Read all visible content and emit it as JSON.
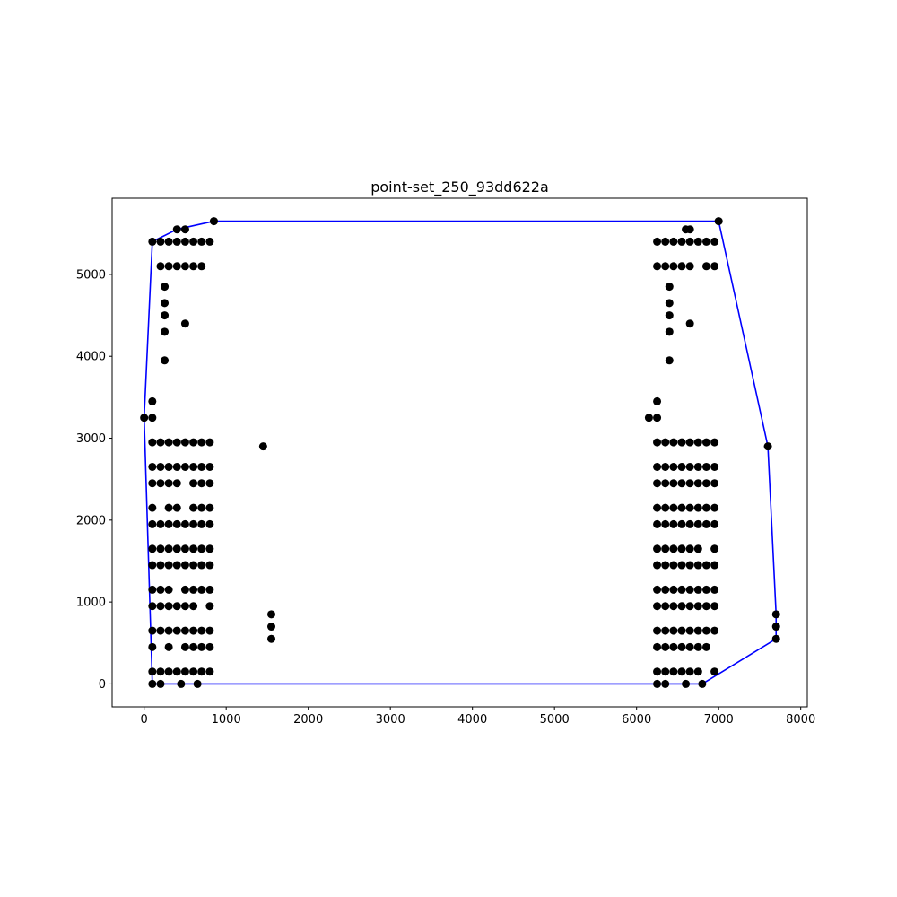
{
  "chart_data": {
    "type": "scatter",
    "title": "point-set_250_93dd622a",
    "xlabel": "",
    "ylabel": "",
    "xlim": [
      -390,
      8080
    ],
    "ylim": [
      -280,
      5930
    ],
    "grid": false,
    "xticks": [
      0,
      1000,
      2000,
      3000,
      4000,
      5000,
      6000,
      7000,
      8000
    ],
    "yticks": [
      0,
      1000,
      2000,
      3000,
      4000,
      5000
    ],
    "colors": {
      "points": "#000000",
      "hull": "#0000ff"
    },
    "series": [
      {
        "kind": "points",
        "points": [
          [
            850,
            5650
          ],
          [
            400,
            5550
          ],
          [
            500,
            5550
          ],
          [
            100,
            5400
          ],
          [
            200,
            5400
          ],
          [
            300,
            5400
          ],
          [
            400,
            5400
          ],
          [
            500,
            5400
          ],
          [
            600,
            5400
          ],
          [
            700,
            5400
          ],
          [
            800,
            5400
          ],
          [
            200,
            5100
          ],
          [
            300,
            5100
          ],
          [
            400,
            5100
          ],
          [
            500,
            5100
          ],
          [
            600,
            5100
          ],
          [
            700,
            5100
          ],
          [
            250,
            4850
          ],
          [
            250,
            4650
          ],
          [
            250,
            4500
          ],
          [
            500,
            4400
          ],
          [
            250,
            4300
          ],
          [
            250,
            3950
          ],
          [
            100,
            3450
          ],
          [
            0,
            3250
          ],
          [
            100,
            3250
          ],
          [
            100,
            2950
          ],
          [
            200,
            2950
          ],
          [
            300,
            2950
          ],
          [
            400,
            2950
          ],
          [
            500,
            2950
          ],
          [
            600,
            2950
          ],
          [
            700,
            2950
          ],
          [
            800,
            2950
          ],
          [
            1450,
            2900
          ],
          [
            100,
            2650
          ],
          [
            200,
            2650
          ],
          [
            300,
            2650
          ],
          [
            400,
            2650
          ],
          [
            500,
            2650
          ],
          [
            600,
            2650
          ],
          [
            700,
            2650
          ],
          [
            800,
            2650
          ],
          [
            100,
            2450
          ],
          [
            200,
            2450
          ],
          [
            300,
            2450
          ],
          [
            400,
            2450
          ],
          [
            600,
            2450
          ],
          [
            700,
            2450
          ],
          [
            800,
            2450
          ],
          [
            100,
            2150
          ],
          [
            300,
            2150
          ],
          [
            400,
            2150
          ],
          [
            600,
            2150
          ],
          [
            700,
            2150
          ],
          [
            800,
            2150
          ],
          [
            100,
            1950
          ],
          [
            200,
            1950
          ],
          [
            300,
            1950
          ],
          [
            400,
            1950
          ],
          [
            500,
            1950
          ],
          [
            600,
            1950
          ],
          [
            700,
            1950
          ],
          [
            800,
            1950
          ],
          [
            100,
            1650
          ],
          [
            200,
            1650
          ],
          [
            300,
            1650
          ],
          [
            400,
            1650
          ],
          [
            500,
            1650
          ],
          [
            600,
            1650
          ],
          [
            700,
            1650
          ],
          [
            800,
            1650
          ],
          [
            100,
            1450
          ],
          [
            200,
            1450
          ],
          [
            300,
            1450
          ],
          [
            400,
            1450
          ],
          [
            500,
            1450
          ],
          [
            600,
            1450
          ],
          [
            700,
            1450
          ],
          [
            800,
            1450
          ],
          [
            100,
            1150
          ],
          [
            200,
            1150
          ],
          [
            300,
            1150
          ],
          [
            500,
            1150
          ],
          [
            600,
            1150
          ],
          [
            700,
            1150
          ],
          [
            800,
            1150
          ],
          [
            100,
            950
          ],
          [
            200,
            950
          ],
          [
            300,
            950
          ],
          [
            400,
            950
          ],
          [
            500,
            950
          ],
          [
            600,
            950
          ],
          [
            800,
            950
          ],
          [
            1550,
            850
          ],
          [
            1550,
            700
          ],
          [
            1550,
            550
          ],
          [
            100,
            650
          ],
          [
            200,
            650
          ],
          [
            300,
            650
          ],
          [
            400,
            650
          ],
          [
            500,
            650
          ],
          [
            600,
            650
          ],
          [
            700,
            650
          ],
          [
            800,
            650
          ],
          [
            100,
            450
          ],
          [
            300,
            450
          ],
          [
            500,
            450
          ],
          [
            600,
            450
          ],
          [
            700,
            450
          ],
          [
            800,
            450
          ],
          [
            100,
            150
          ],
          [
            200,
            150
          ],
          [
            300,
            150
          ],
          [
            400,
            150
          ],
          [
            500,
            150
          ],
          [
            600,
            150
          ],
          [
            700,
            150
          ],
          [
            800,
            150
          ],
          [
            100,
            0
          ],
          [
            200,
            0
          ],
          [
            450,
            0
          ],
          [
            650,
            0
          ],
          [
            7000,
            5650
          ],
          [
            6600,
            5550
          ],
          [
            6650,
            5550
          ],
          [
            6250,
            5400
          ],
          [
            6350,
            5400
          ],
          [
            6450,
            5400
          ],
          [
            6550,
            5400
          ],
          [
            6650,
            5400
          ],
          [
            6750,
            5400
          ],
          [
            6850,
            5400
          ],
          [
            6950,
            5400
          ],
          [
            6250,
            5100
          ],
          [
            6350,
            5100
          ],
          [
            6450,
            5100
          ],
          [
            6550,
            5100
          ],
          [
            6650,
            5100
          ],
          [
            6850,
            5100
          ],
          [
            6950,
            5100
          ],
          [
            6400,
            4850
          ],
          [
            6400,
            4650
          ],
          [
            6400,
            4500
          ],
          [
            6650,
            4400
          ],
          [
            6400,
            4300
          ],
          [
            6400,
            3950
          ],
          [
            6250,
            3450
          ],
          [
            6150,
            3250
          ],
          [
            6250,
            3250
          ],
          [
            6250,
            2950
          ],
          [
            6350,
            2950
          ],
          [
            6450,
            2950
          ],
          [
            6550,
            2950
          ],
          [
            6650,
            2950
          ],
          [
            6750,
            2950
          ],
          [
            6850,
            2950
          ],
          [
            6950,
            2950
          ],
          [
            7600,
            2900
          ],
          [
            6250,
            2650
          ],
          [
            6350,
            2650
          ],
          [
            6450,
            2650
          ],
          [
            6550,
            2650
          ],
          [
            6650,
            2650
          ],
          [
            6750,
            2650
          ],
          [
            6850,
            2650
          ],
          [
            6950,
            2650
          ],
          [
            6250,
            2450
          ],
          [
            6350,
            2450
          ],
          [
            6450,
            2450
          ],
          [
            6550,
            2450
          ],
          [
            6650,
            2450
          ],
          [
            6750,
            2450
          ],
          [
            6850,
            2450
          ],
          [
            6950,
            2450
          ],
          [
            6250,
            2150
          ],
          [
            6350,
            2150
          ],
          [
            6450,
            2150
          ],
          [
            6550,
            2150
          ],
          [
            6650,
            2150
          ],
          [
            6750,
            2150
          ],
          [
            6850,
            2150
          ],
          [
            6950,
            2150
          ],
          [
            6250,
            1950
          ],
          [
            6350,
            1950
          ],
          [
            6450,
            1950
          ],
          [
            6550,
            1950
          ],
          [
            6650,
            1950
          ],
          [
            6750,
            1950
          ],
          [
            6850,
            1950
          ],
          [
            6950,
            1950
          ],
          [
            6250,
            1650
          ],
          [
            6350,
            1650
          ],
          [
            6450,
            1650
          ],
          [
            6550,
            1650
          ],
          [
            6650,
            1650
          ],
          [
            6750,
            1650
          ],
          [
            6950,
            1650
          ],
          [
            6250,
            1450
          ],
          [
            6350,
            1450
          ],
          [
            6450,
            1450
          ],
          [
            6550,
            1450
          ],
          [
            6650,
            1450
          ],
          [
            6750,
            1450
          ],
          [
            6850,
            1450
          ],
          [
            6950,
            1450
          ],
          [
            6250,
            1150
          ],
          [
            6350,
            1150
          ],
          [
            6450,
            1150
          ],
          [
            6550,
            1150
          ],
          [
            6650,
            1150
          ],
          [
            6750,
            1150
          ],
          [
            6850,
            1150
          ],
          [
            6950,
            1150
          ],
          [
            6250,
            950
          ],
          [
            6350,
            950
          ],
          [
            6450,
            950
          ],
          [
            6550,
            950
          ],
          [
            6650,
            950
          ],
          [
            6750,
            950
          ],
          [
            6850,
            950
          ],
          [
            6950,
            950
          ],
          [
            7700,
            850
          ],
          [
            7700,
            700
          ],
          [
            7700,
            550
          ],
          [
            6250,
            650
          ],
          [
            6350,
            650
          ],
          [
            6450,
            650
          ],
          [
            6550,
            650
          ],
          [
            6650,
            650
          ],
          [
            6750,
            650
          ],
          [
            6850,
            650
          ],
          [
            6950,
            650
          ],
          [
            6250,
            450
          ],
          [
            6350,
            450
          ],
          [
            6450,
            450
          ],
          [
            6550,
            450
          ],
          [
            6650,
            450
          ],
          [
            6750,
            450
          ],
          [
            6850,
            450
          ],
          [
            6250,
            150
          ],
          [
            6350,
            150
          ],
          [
            6450,
            150
          ],
          [
            6550,
            150
          ],
          [
            6650,
            150
          ],
          [
            6750,
            150
          ],
          [
            6950,
            150
          ],
          [
            6250,
            0
          ],
          [
            6350,
            0
          ],
          [
            6600,
            0
          ],
          [
            6800,
            0
          ]
        ]
      },
      {
        "kind": "hull",
        "points": [
          [
            100,
            0
          ],
          [
            6800,
            0
          ],
          [
            7700,
            550
          ],
          [
            7700,
            850
          ],
          [
            7600,
            2900
          ],
          [
            7000,
            5650
          ],
          [
            850,
            5650
          ],
          [
            400,
            5550
          ],
          [
            100,
            5400
          ],
          [
            0,
            3250
          ],
          [
            100,
            0
          ]
        ]
      }
    ]
  }
}
